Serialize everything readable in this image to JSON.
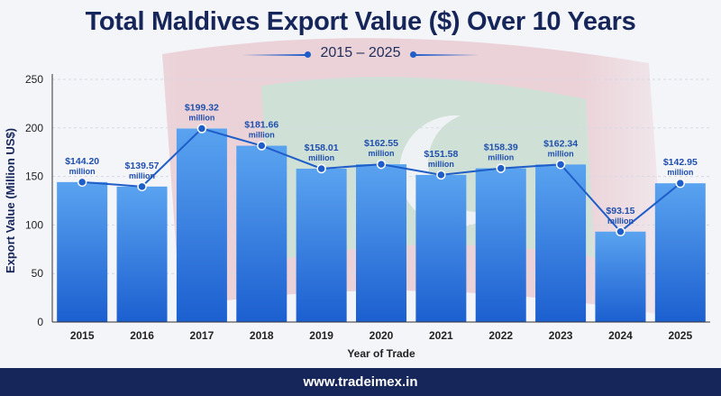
{
  "header": {
    "title": "Total Maldives Export Value ($) Over 10 Years",
    "subtitle": "2015 – 2025"
  },
  "footer": {
    "website": "www.tradeimex.in"
  },
  "colors": {
    "bar_top": "#5aa3f0",
    "bar_bottom": "#1c5fd0",
    "line": "#1f5dc8",
    "marker": "#1f5dc8",
    "label_text": "#1f4fae",
    "axis_text": "#222222",
    "title_text": "#16265a",
    "footer_bg": "#16265a"
  },
  "chart_data": {
    "type": "bar",
    "categories": [
      "2015",
      "2016",
      "2017",
      "2018",
      "2019",
      "2020",
      "2021",
      "2022",
      "2023",
      "2024",
      "2025"
    ],
    "values": [
      144.2,
      139.57,
      199.32,
      181.66,
      158.01,
      162.55,
      151.58,
      158.39,
      162.34,
      93.15,
      142.95
    ],
    "data_labels": [
      "$144.20",
      "$139.57",
      "$199.32",
      "$181.66",
      "$158.01",
      "$162.55",
      "$151.58",
      "$158.39",
      "$162.34",
      "$93.15",
      "$142.95"
    ],
    "data_label_unit": "million",
    "overlay_line": true,
    "xlabel": "Year of Trade",
    "ylabel": "Export Value (Million US$)",
    "ylim": [
      0,
      250
    ],
    "yticks": [
      0,
      50,
      100,
      150,
      200,
      250
    ],
    "grid": true,
    "legend": "none"
  }
}
